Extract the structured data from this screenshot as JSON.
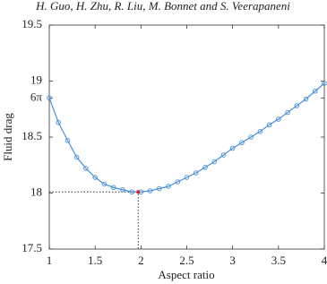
{
  "header": "H. Guo, H. Zhu, R. Liu, M. Bonnet and S. Veerapaneni",
  "chart_data": {
    "type": "line",
    "x_label": "Aspect ratio",
    "y_label": "Fluid drag",
    "x": [
      1,
      1.1,
      1.2,
      1.3,
      1.4,
      1.5,
      1.6,
      1.7,
      1.8,
      1.9,
      2,
      2.1,
      2.2,
      2.3,
      2.4,
      2.5,
      2.6,
      2.7,
      2.8,
      2.9,
      3,
      3.1,
      3.2,
      3.3,
      3.4,
      3.5,
      3.6,
      3.7,
      3.8,
      3.9,
      4
    ],
    "series": [
      {
        "color": "#4a90d9",
        "values": [
          18.85,
          18.63,
          18.47,
          18.32,
          18.22,
          18.14,
          18.08,
          18.05,
          18.03,
          18.01,
          18.01,
          18.02,
          18.04,
          18.06,
          18.1,
          18.14,
          18.18,
          18.23,
          18.28,
          18.34,
          18.4,
          18.45,
          18.5,
          18.55,
          18.61,
          18.66,
          18.72,
          18.78,
          18.84,
          18.91,
          18.98
        ]
      }
    ],
    "optimum": {
      "x": 1.97,
      "y": 18.01,
      "color": "#d62728"
    },
    "xlim": [
      1,
      4
    ],
    "xticks": [
      1,
      1.5,
      2,
      2.5,
      3,
      3.5,
      4
    ],
    "ylim": [
      17.5,
      19.5
    ],
    "yticks": [
      17.5,
      18,
      18.5,
      {
        "value": 18.8496,
        "label": "6π"
      },
      19,
      19.5
    ]
  }
}
